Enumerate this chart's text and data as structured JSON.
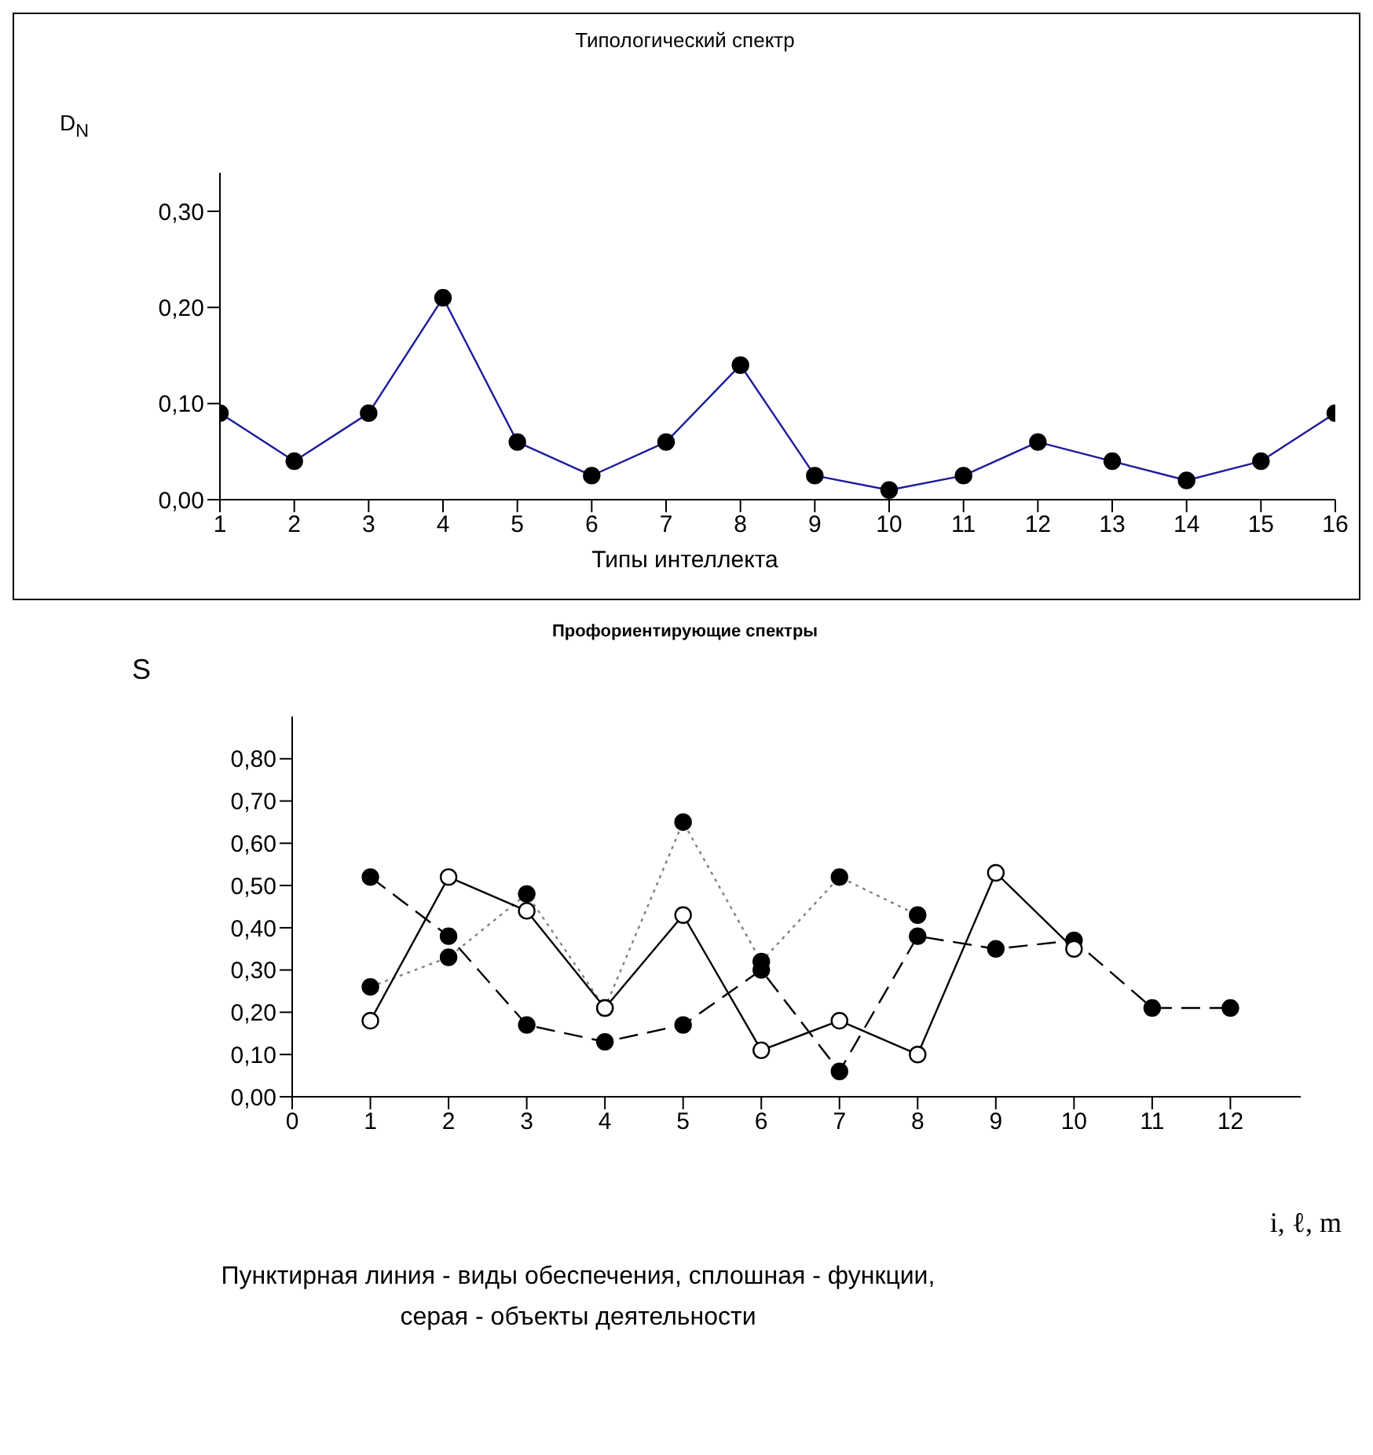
{
  "chart_data": [
    {
      "type": "line",
      "title": "Типологический спектр",
      "xlabel": "Типы  интеллекта",
      "ylabel": "D$_{N}$",
      "x": [
        1,
        2,
        3,
        4,
        5,
        6,
        7,
        8,
        9,
        10,
        11,
        12,
        13,
        14,
        15,
        16
      ],
      "series": [
        {
          "color": "#1c1c9c",
          "values": [
            0.09,
            0.04,
            0.09,
            0.21,
            0.06,
            0.025,
            0.06,
            0.14,
            0.025,
            0.01,
            0.025,
            0.06,
            0.04,
            0.02,
            0.04,
            0.09
          ]
        }
      ],
      "xlim": [
        1,
        16
      ],
      "xticks": [
        1,
        2,
        3,
        4,
        5,
        6,
        7,
        8,
        9,
        10,
        11,
        12,
        13,
        14,
        15,
        16
      ],
      "ylim": [
        0,
        0.34
      ],
      "yticks": [
        {
          "value": 0,
          "label": "0,00"
        },
        {
          "value": 0.1,
          "label": "0,10"
        },
        {
          "value": 0.2,
          "label": "0,20"
        },
        {
          "value": 0.3,
          "label": "0,30"
        }
      ],
      "marker": "circle",
      "grid": false
    },
    {
      "type": "line",
      "title": "Профориентирующие спектры",
      "ylabel": "S",
      "xlabel": "i, ℓ, m",
      "annotations": [
        "Пунктирная линия - виды обеспечения, сплошная - функции, серая - объекты деятельности"
      ],
      "series": [
        {
          "color": "#000000",
          "line_style": "dashed",
          "x": [
            1,
            2,
            3,
            4,
            5,
            6,
            7,
            8,
            9,
            10,
            11,
            12
          ],
          "values": [
            0.52,
            0.38,
            0.17,
            0.13,
            0.17,
            0.3,
            0.06,
            0.38,
            0.35,
            0.37,
            0.21,
            0.21
          ]
        },
        {
          "color": "#808080",
          "line_style": "dotted",
          "x": [
            1,
            2,
            3,
            4,
            5,
            6,
            7,
            8
          ],
          "values": [
            0.26,
            0.33,
            0.48,
            0.21,
            0.65,
            0.32,
            0.52,
            0.43
          ]
        },
        {
          "color": "#000000",
          "line_style": "solid",
          "x": [
            1,
            2,
            3,
            4,
            5,
            6,
            7,
            8,
            9,
            10
          ],
          "values": [
            0.18,
            0.52,
            0.44,
            0.21,
            0.43,
            0.11,
            0.18,
            0.1,
            0.53,
            0.35
          ]
        }
      ],
      "xlim": [
        0,
        12.9
      ],
      "xticks": [
        0,
        1,
        2,
        3,
        4,
        5,
        6,
        7,
        8,
        9,
        10,
        11,
        12
      ],
      "ylim": [
        0,
        0.9
      ],
      "yticks": [
        {
          "value": 0,
          "label": "0,00"
        },
        {
          "value": 0.1,
          "label": "0,10"
        },
        {
          "value": 0.2,
          "label": "0,20"
        },
        {
          "value": 0.3,
          "label": "0,30"
        },
        {
          "value": 0.4,
          "label": "0,40"
        },
        {
          "value": 0.5,
          "label": "0,50"
        },
        {
          "value": 0.6,
          "label": "0,60"
        },
        {
          "value": 0.7,
          "label": "0,70"
        },
        {
          "value": 0.8,
          "label": "0,80"
        }
      ],
      "marker": "circle",
      "grid": false
    }
  ]
}
